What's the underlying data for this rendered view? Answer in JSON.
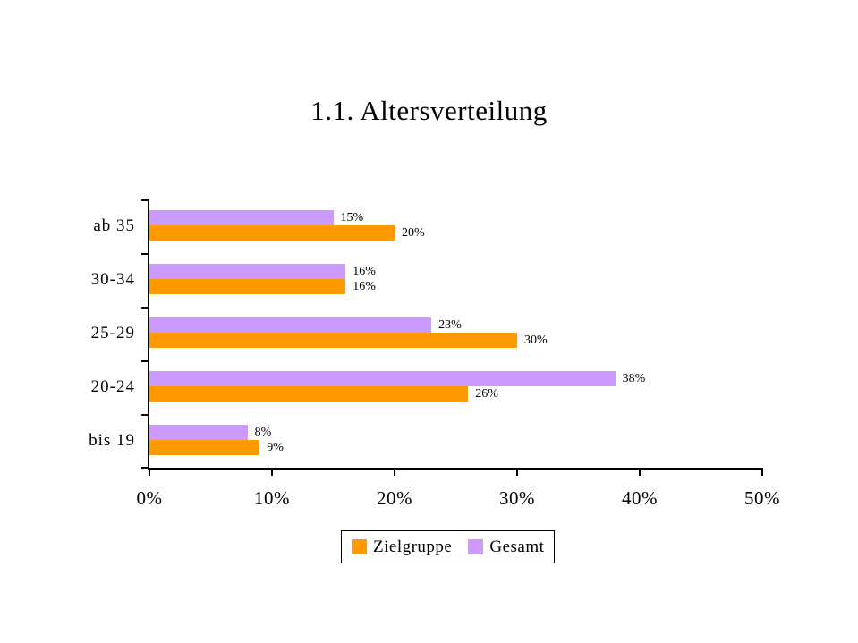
{
  "chart_data": {
    "type": "bar",
    "orientation": "horizontal",
    "title": "1.1. Altersverteilung",
    "categories": [
      "ab 35",
      "30-34",
      "25-29",
      "20-24",
      "bis 19"
    ],
    "series": [
      {
        "name": "Zielgruppe",
        "color": "#FF9900",
        "values": [
          20,
          16,
          30,
          26,
          9
        ]
      },
      {
        "name": "Gesamt",
        "color": "#CC99FF",
        "values": [
          15,
          16,
          23,
          38,
          8
        ]
      }
    ],
    "xlim": [
      0,
      50
    ],
    "x_ticks": [
      "0%",
      "10%",
      "20%",
      "30%",
      "40%",
      "50%"
    ],
    "data_label_suffix": "%",
    "legend_position": "bottom",
    "grid": false,
    "axis_color": "#000000",
    "background_color": "#FFFFFF",
    "notes": "Within each category band the Gesamt (lavender) bar is drawn above the Zielgruppe (orange) bar; value labels sit to the right of each bar end."
  }
}
